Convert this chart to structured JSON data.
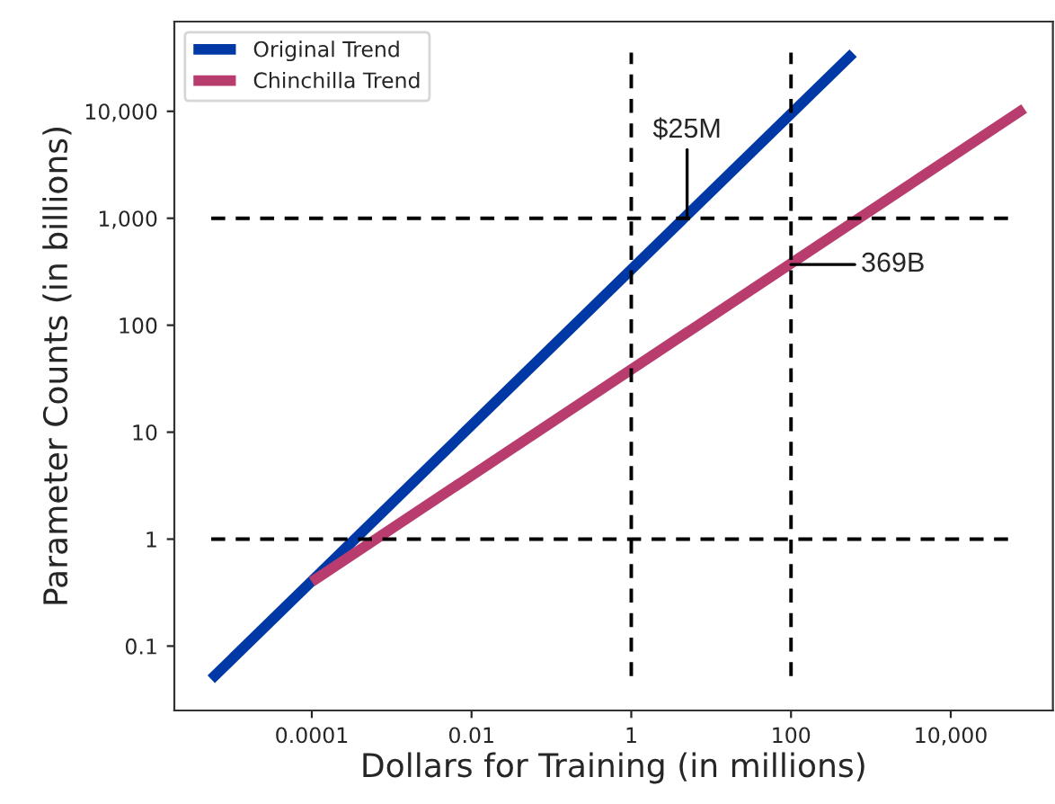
{
  "chart_data": {
    "type": "line",
    "xlabel": "Dollars for Training (in millions)",
    "ylabel": "Parameter Counts (in billions)",
    "log": "xy",
    "grid": false,
    "legend": "top left",
    "line_style": "solid",
    "marker": "none",
    "xlim": [
      1.9e-06,
      190000
    ],
    "ylim": [
      0.025,
      69000
    ],
    "xticks": [
      {
        "value": 0.0001,
        "label": "0.0001"
      },
      {
        "value": 0.01,
        "label": "0.01"
      },
      1,
      100,
      {
        "value": 10000,
        "label": "10,000"
      }
    ],
    "yticks": [
      {
        "value": 0.1,
        "label": "0.1"
      },
      1,
      10,
      100,
      {
        "value": 1000,
        "label": "1,000"
      },
      {
        "value": 10000,
        "label": "10,000"
      }
    ],
    "series": [
      {
        "name": "Original Trend",
        "color": "#0039a6",
        "x": [
          5.5e-06,
          600
        ],
        "values": [
          0.049,
          35000
        ]
      },
      {
        "name": "Chinchilla Trend",
        "color": "#b83d6e",
        "x": [
          0.0001,
          83000
        ],
        "values": [
          0.4,
          10600
        ]
      }
    ],
    "ref_lines": [
      {
        "axis": "y",
        "value": 1,
        "line_style": "dashed"
      },
      {
        "axis": "y",
        "value": 1000,
        "line_style": "dashed"
      },
      {
        "axis": "x",
        "value": 1,
        "line_style": "dashed"
      },
      {
        "axis": "x",
        "value": 100,
        "line_style": "dashed"
      }
    ],
    "annotations": [
      {
        "text": "$25M",
        "x": 5,
        "y": 1000
      },
      {
        "text": "369B",
        "x": 100,
        "y": 369
      }
    ]
  }
}
